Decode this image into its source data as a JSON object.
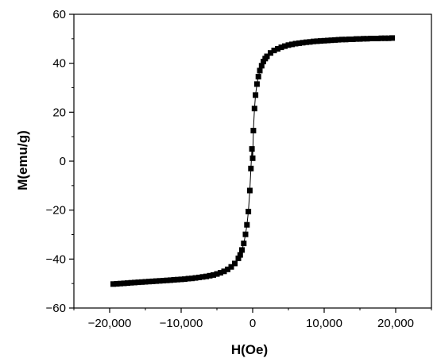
{
  "chart_data": {
    "type": "scatter",
    "xlabel": "H(Oe)",
    "ylabel": "M(emu/g)",
    "xlim": [
      -25000,
      25000
    ],
    "ylim": [
      -60,
      60
    ],
    "x_ticks": [
      -20000,
      -10000,
      0,
      10000,
      20000
    ],
    "x_tick_labels": [
      "−20,000",
      "−10,000",
      "0",
      "10,000",
      "20,000"
    ],
    "y_ticks": [
      -60,
      -40,
      -20,
      0,
      20,
      40,
      60
    ],
    "y_tick_labels": [
      "−60",
      "−40",
      "−20",
      "0",
      "20",
      "40",
      "60"
    ],
    "grid": false,
    "legend": "none",
    "marker": "square",
    "marker_color": "#000000",
    "line_color": "#000000",
    "series": [
      {
        "x": [
          -19500,
          -19000,
          -18500,
          -18000,
          -17500,
          -17000,
          -16500,
          -16000,
          -15500,
          -15000,
          -14500,
          -14000,
          -13500,
          -13000,
          -12500,
          -12000,
          -11500,
          -11000,
          -10500,
          -10000,
          -9500,
          -9000,
          -8500,
          -8000,
          -7500,
          -7000,
          -6500,
          -6000,
          -5500,
          -5000,
          -4500,
          -4000,
          -3500,
          -3000,
          -2500,
          -2000,
          -1750,
          -1500,
          -1250,
          -1000,
          -800,
          -600,
          -400,
          -250,
          -100,
          0,
          100,
          250,
          400,
          600,
          800,
          1000,
          1250,
          1500,
          1750,
          2000,
          2500,
          3000,
          3500,
          4000,
          4500,
          5000,
          5500,
          6000,
          6500,
          7000,
          7500,
          8000,
          8500,
          9000,
          9500,
          10000,
          10500,
          11000,
          11500,
          12000,
          12500,
          13000,
          13500,
          14000,
          14500,
          15000,
          15500,
          16000,
          16500,
          17000,
          17500,
          18000,
          18500,
          19000,
          19500
        ],
        "y": [
          -50.2,
          -50.1,
          -50.0,
          -49.9,
          -49.8,
          -49.7,
          -49.6,
          -49.5,
          -49.4,
          -49.3,
          -49.2,
          -49.1,
          -49.0,
          -48.9,
          -48.8,
          -48.7,
          -48.6,
          -48.5,
          -48.4,
          -48.3,
          -48.2,
          -48.0,
          -47.9,
          -47.7,
          -47.5,
          -47.3,
          -47.1,
          -46.8,
          -46.5,
          -46.1,
          -45.6,
          -45.0,
          -44.2,
          -43.2,
          -41.8,
          -39.7,
          -38.3,
          -36.3,
          -33.6,
          -29.9,
          -26.0,
          -20.6,
          -12.0,
          -3.0,
          5.0,
          1.2,
          12.5,
          21.5,
          27.0,
          31.5,
          34.5,
          37.0,
          39.0,
          40.7,
          41.9,
          42.8,
          44.2,
          45.2,
          45.9,
          46.5,
          47.0,
          47.4,
          47.7,
          48.0,
          48.2,
          48.4,
          48.6,
          48.7,
          48.9,
          49.0,
          49.1,
          49.2,
          49.3,
          49.4,
          49.5,
          49.6,
          49.7,
          49.7,
          49.8,
          49.8,
          49.9,
          49.9,
          50.0,
          50.0,
          50.1,
          50.1,
          50.1,
          50.2,
          50.2,
          50.2,
          50.3
        ]
      }
    ]
  }
}
